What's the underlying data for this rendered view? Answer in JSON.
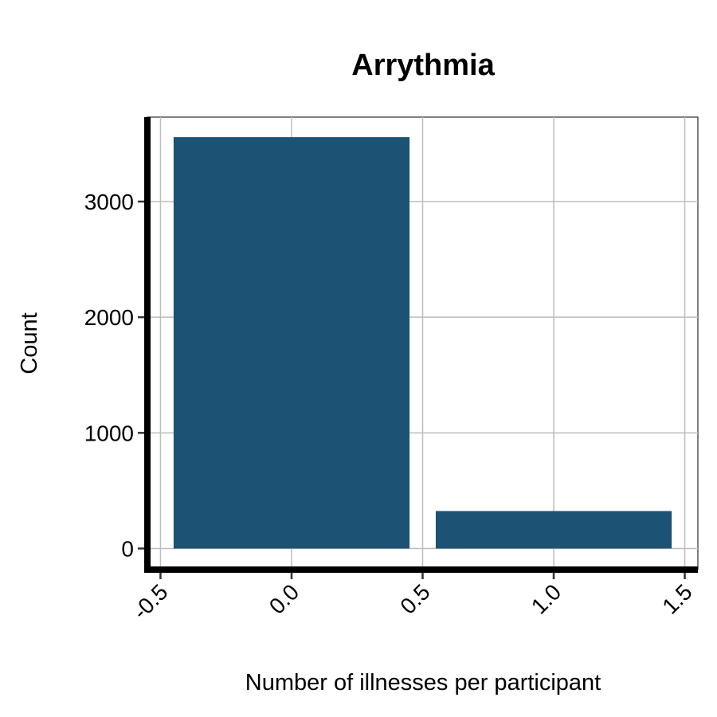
{
  "chart_data": {
    "type": "bar",
    "title": "Arrythmia",
    "xlabel": "Number of illnesses per participant",
    "ylabel": "Count",
    "x": [
      0,
      1
    ],
    "values": [
      3557,
      324
    ],
    "bar_width": 0.9,
    "xlim": [
      -0.5,
      1.5
    ],
    "ylim": [
      0,
      3557
    ],
    "xticks": [
      "-0.5",
      "0.0",
      "0.5",
      "1.0",
      "1.5"
    ],
    "yticks": [
      "0",
      "1000",
      "2000",
      "3000"
    ],
    "grid": true,
    "legend": "none",
    "colors": {
      "bar": "#1c5274",
      "grid": "#bdbdbd",
      "axis": "#000000"
    }
  }
}
